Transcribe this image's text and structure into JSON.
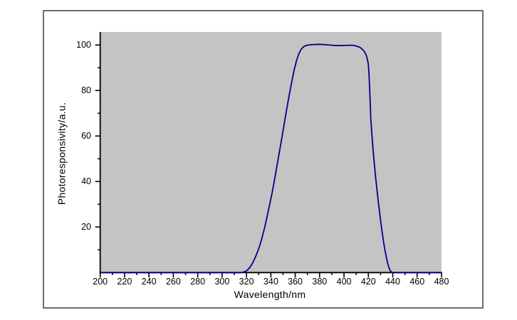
{
  "window": {
    "background_color": "#ffffff",
    "frame_border_color": "#6e6e6e"
  },
  "chart_data": {
    "type": "line",
    "title": "",
    "xlabel": "Wavelength/nm",
    "ylabel": "Photoresponsivity/a.u.",
    "xlim": [
      200,
      480
    ],
    "ylim": [
      0,
      105.7
    ],
    "x_major_ticks": [
      200,
      220,
      240,
      260,
      280,
      300,
      320,
      340,
      360,
      380,
      400,
      420,
      440,
      460,
      480
    ],
    "x_minor_step": 10,
    "y_major_ticks": [
      20,
      40,
      60,
      80,
      100
    ],
    "y_minor_step": 10,
    "grid": false,
    "legend": null,
    "plot_bg_color": "#c4c4c4",
    "axis_color": "#000000",
    "line_color": "#00008c",
    "series": [
      {
        "name": "photoresponsivity",
        "points": [
          [
            200,
            0
          ],
          [
            220,
            0
          ],
          [
            240,
            0
          ],
          [
            260,
            0
          ],
          [
            280,
            0
          ],
          [
            300,
            0
          ],
          [
            310,
            0
          ],
          [
            315,
            0
          ],
          [
            317,
            0.1
          ],
          [
            319,
            0.5
          ],
          [
            321,
            1.2
          ],
          [
            323,
            2.4
          ],
          [
            325,
            4.2
          ],
          [
            327,
            6.4
          ],
          [
            329,
            9
          ],
          [
            331,
            12
          ],
          [
            333,
            15.8
          ],
          [
            335,
            20
          ],
          [
            337,
            24.8
          ],
          [
            339,
            29.8
          ],
          [
            341,
            35
          ],
          [
            343,
            40.8
          ],
          [
            345,
            46.8
          ],
          [
            347,
            53
          ],
          [
            349,
            59.2
          ],
          [
            351,
            65.5
          ],
          [
            353,
            71.8
          ],
          [
            355,
            77.8
          ],
          [
            357,
            83.5
          ],
          [
            359,
            88.8
          ],
          [
            361,
            93
          ],
          [
            363,
            96.2
          ],
          [
            365,
            98.2
          ],
          [
            367,
            99.3
          ],
          [
            369,
            99.8
          ],
          [
            371,
            100
          ],
          [
            375,
            100.2
          ],
          [
            380,
            100.3
          ],
          [
            385,
            100.1
          ],
          [
            390,
            99.9
          ],
          [
            395,
            99.7
          ],
          [
            400,
            99.8
          ],
          [
            405,
            99.9
          ],
          [
            408,
            99.8
          ],
          [
            410,
            99.5
          ],
          [
            412,
            99.2
          ],
          [
            414,
            98.6
          ],
          [
            416,
            97.6
          ],
          [
            417,
            96.8
          ],
          [
            418,
            95.8
          ],
          [
            419,
            94.2
          ],
          [
            420,
            91.5
          ],
          [
            420.5,
            87.5
          ],
          [
            421,
            81.5
          ],
          [
            421.5,
            74.5
          ],
          [
            422,
            67.5
          ],
          [
            423,
            60
          ],
          [
            424,
            53.2
          ],
          [
            425,
            47
          ],
          [
            426,
            41.5
          ],
          [
            427,
            36.5
          ],
          [
            428,
            31.8
          ],
          [
            429,
            27.3
          ],
          [
            430,
            23
          ],
          [
            431,
            19
          ],
          [
            432,
            15.2
          ],
          [
            433,
            11.8
          ],
          [
            434,
            8.7
          ],
          [
            435,
            6
          ],
          [
            436,
            3.8
          ],
          [
            437,
            2
          ],
          [
            438,
            0.8
          ],
          [
            439,
            0.2
          ],
          [
            440,
            0
          ],
          [
            450,
            0
          ],
          [
            460,
            0
          ],
          [
            470,
            0
          ],
          [
            480,
            0
          ]
        ]
      }
    ]
  }
}
